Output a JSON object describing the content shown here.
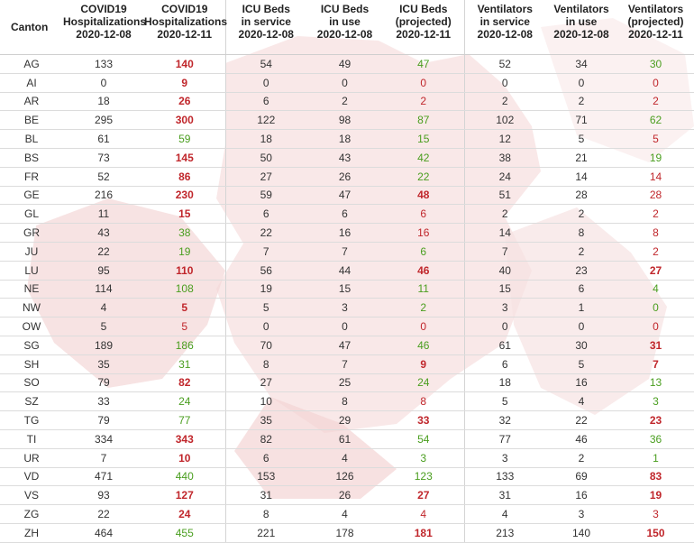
{
  "colors": {
    "increase": "#c0262b",
    "decrease": "#4a9e1f",
    "neutral": "#333333"
  },
  "headers": [
    [
      "Canton"
    ],
    [
      "COVID19",
      "Hospitalizations",
      "2020-12-08"
    ],
    [
      "COVID19",
      "Hospitalizations",
      "2020-12-11"
    ],
    [
      "ICU Beds",
      "in service",
      "2020-12-08"
    ],
    [
      "ICU Beds",
      "in use",
      "2020-12-08"
    ],
    [
      "ICU Beds",
      "(projected)",
      "2020-12-11"
    ],
    [
      "Ventilators",
      "in service",
      "2020-12-08"
    ],
    [
      "Ventilators",
      "in use",
      "2020-12-08"
    ],
    [
      "Ventilators",
      "(projected)",
      "2020-12-11"
    ]
  ],
  "rows": [
    {
      "canton": "AG",
      "hosp_0812": "133",
      "hosp_1211": {
        "value": "140",
        "trend": "red"
      },
      "icu_service": "54",
      "icu_use": "49",
      "icu_proj": {
        "value": "47",
        "trend": "green"
      },
      "vent_service": "52",
      "vent_use": "34",
      "vent_proj": {
        "value": "30",
        "trend": "green"
      }
    },
    {
      "canton": "AI",
      "hosp_0812": "0",
      "hosp_1211": {
        "value": "9",
        "trend": "red"
      },
      "icu_service": "0",
      "icu_use": "0",
      "icu_proj": {
        "value": "0",
        "trend": "red-light"
      },
      "vent_service": "0",
      "vent_use": "0",
      "vent_proj": {
        "value": "0",
        "trend": "red-light"
      }
    },
    {
      "canton": "AR",
      "hosp_0812": "18",
      "hosp_1211": {
        "value": "26",
        "trend": "red"
      },
      "icu_service": "6",
      "icu_use": "2",
      "icu_proj": {
        "value": "2",
        "trend": "red-light"
      },
      "vent_service": "2",
      "vent_use": "2",
      "vent_proj": {
        "value": "2",
        "trend": "red-light"
      }
    },
    {
      "canton": "BE",
      "hosp_0812": "295",
      "hosp_1211": {
        "value": "300",
        "trend": "red"
      },
      "icu_service": "122",
      "icu_use": "98",
      "icu_proj": {
        "value": "87",
        "trend": "green"
      },
      "vent_service": "102",
      "vent_use": "71",
      "vent_proj": {
        "value": "62",
        "trend": "green"
      }
    },
    {
      "canton": "BL",
      "hosp_0812": "61",
      "hosp_1211": {
        "value": "59",
        "trend": "green"
      },
      "icu_service": "18",
      "icu_use": "18",
      "icu_proj": {
        "value": "15",
        "trend": "green"
      },
      "vent_service": "12",
      "vent_use": "5",
      "vent_proj": {
        "value": "5",
        "trend": "red-light"
      }
    },
    {
      "canton": "BS",
      "hosp_0812": "73",
      "hosp_1211": {
        "value": "145",
        "trend": "red"
      },
      "icu_service": "50",
      "icu_use": "43",
      "icu_proj": {
        "value": "42",
        "trend": "green"
      },
      "vent_service": "38",
      "vent_use": "21",
      "vent_proj": {
        "value": "19",
        "trend": "green"
      }
    },
    {
      "canton": "FR",
      "hosp_0812": "52",
      "hosp_1211": {
        "value": "86",
        "trend": "red"
      },
      "icu_service": "27",
      "icu_use": "26",
      "icu_proj": {
        "value": "22",
        "trend": "green"
      },
      "vent_service": "24",
      "vent_use": "14",
      "vent_proj": {
        "value": "14",
        "trend": "red-light"
      }
    },
    {
      "canton": "GE",
      "hosp_0812": "216",
      "hosp_1211": {
        "value": "230",
        "trend": "red"
      },
      "icu_service": "59",
      "icu_use": "47",
      "icu_proj": {
        "value": "48",
        "trend": "red"
      },
      "vent_service": "51",
      "vent_use": "28",
      "vent_proj": {
        "value": "28",
        "trend": "red-light"
      }
    },
    {
      "canton": "GL",
      "hosp_0812": "11",
      "hosp_1211": {
        "value": "15",
        "trend": "red"
      },
      "icu_service": "6",
      "icu_use": "6",
      "icu_proj": {
        "value": "6",
        "trend": "red-light"
      },
      "vent_service": "2",
      "vent_use": "2",
      "vent_proj": {
        "value": "2",
        "trend": "red-light"
      }
    },
    {
      "canton": "GR",
      "hosp_0812": "43",
      "hosp_1211": {
        "value": "38",
        "trend": "green"
      },
      "icu_service": "22",
      "icu_use": "16",
      "icu_proj": {
        "value": "16",
        "trend": "red-light"
      },
      "vent_service": "14",
      "vent_use": "8",
      "vent_proj": {
        "value": "8",
        "trend": "red-light"
      }
    },
    {
      "canton": "JU",
      "hosp_0812": "22",
      "hosp_1211": {
        "value": "19",
        "trend": "green"
      },
      "icu_service": "7",
      "icu_use": "7",
      "icu_proj": {
        "value": "6",
        "trend": "green"
      },
      "vent_service": "7",
      "vent_use": "2",
      "vent_proj": {
        "value": "2",
        "trend": "red-light"
      }
    },
    {
      "canton": "LU",
      "hosp_0812": "95",
      "hosp_1211": {
        "value": "110",
        "trend": "red"
      },
      "icu_service": "56",
      "icu_use": "44",
      "icu_proj": {
        "value": "46",
        "trend": "red"
      },
      "vent_service": "40",
      "vent_use": "23",
      "vent_proj": {
        "value": "27",
        "trend": "red"
      }
    },
    {
      "canton": "NE",
      "hosp_0812": "114",
      "hosp_1211": {
        "value": "108",
        "trend": "green"
      },
      "icu_service": "19",
      "icu_use": "15",
      "icu_proj": {
        "value": "11",
        "trend": "green"
      },
      "vent_service": "15",
      "vent_use": "6",
      "vent_proj": {
        "value": "4",
        "trend": "green"
      }
    },
    {
      "canton": "NW",
      "hosp_0812": "4",
      "hosp_1211": {
        "value": "5",
        "trend": "red"
      },
      "icu_service": "5",
      "icu_use": "3",
      "icu_proj": {
        "value": "2",
        "trend": "green"
      },
      "vent_service": "3",
      "vent_use": "1",
      "vent_proj": {
        "value": "0",
        "trend": "green"
      }
    },
    {
      "canton": "OW",
      "hosp_0812": "5",
      "hosp_1211": {
        "value": "5",
        "trend": "red-light"
      },
      "icu_service": "0",
      "icu_use": "0",
      "icu_proj": {
        "value": "0",
        "trend": "red-light"
      },
      "vent_service": "0",
      "vent_use": "0",
      "vent_proj": {
        "value": "0",
        "trend": "red-light"
      }
    },
    {
      "canton": "SG",
      "hosp_0812": "189",
      "hosp_1211": {
        "value": "186",
        "trend": "green"
      },
      "icu_service": "70",
      "icu_use": "47",
      "icu_proj": {
        "value": "46",
        "trend": "green"
      },
      "vent_service": "61",
      "vent_use": "30",
      "vent_proj": {
        "value": "31",
        "trend": "red"
      }
    },
    {
      "canton": "SH",
      "hosp_0812": "35",
      "hosp_1211": {
        "value": "31",
        "trend": "green"
      },
      "icu_service": "8",
      "icu_use": "7",
      "icu_proj": {
        "value": "9",
        "trend": "red"
      },
      "vent_service": "6",
      "vent_use": "5",
      "vent_proj": {
        "value": "7",
        "trend": "red"
      }
    },
    {
      "canton": "SO",
      "hosp_0812": "79",
      "hosp_1211": {
        "value": "82",
        "trend": "red"
      },
      "icu_service": "27",
      "icu_use": "25",
      "icu_proj": {
        "value": "24",
        "trend": "green"
      },
      "vent_service": "18",
      "vent_use": "16",
      "vent_proj": {
        "value": "13",
        "trend": "green"
      }
    },
    {
      "canton": "SZ",
      "hosp_0812": "33",
      "hosp_1211": {
        "value": "24",
        "trend": "green"
      },
      "icu_service": "10",
      "icu_use": "8",
      "icu_proj": {
        "value": "8",
        "trend": "red-light"
      },
      "vent_service": "5",
      "vent_use": "4",
      "vent_proj": {
        "value": "3",
        "trend": "green"
      }
    },
    {
      "canton": "TG",
      "hosp_0812": "79",
      "hosp_1211": {
        "value": "77",
        "trend": "green"
      },
      "icu_service": "35",
      "icu_use": "29",
      "icu_proj": {
        "value": "33",
        "trend": "red"
      },
      "vent_service": "32",
      "vent_use": "22",
      "vent_proj": {
        "value": "23",
        "trend": "red"
      }
    },
    {
      "canton": "TI",
      "hosp_0812": "334",
      "hosp_1211": {
        "value": "343",
        "trend": "red"
      },
      "icu_service": "82",
      "icu_use": "61",
      "icu_proj": {
        "value": "54",
        "trend": "green"
      },
      "vent_service": "77",
      "vent_use": "46",
      "vent_proj": {
        "value": "36",
        "trend": "green"
      }
    },
    {
      "canton": "UR",
      "hosp_0812": "7",
      "hosp_1211": {
        "value": "10",
        "trend": "red"
      },
      "icu_service": "6",
      "icu_use": "4",
      "icu_proj": {
        "value": "3",
        "trend": "green"
      },
      "vent_service": "3",
      "vent_use": "2",
      "vent_proj": {
        "value": "1",
        "trend": "green"
      }
    },
    {
      "canton": "VD",
      "hosp_0812": "471",
      "hosp_1211": {
        "value": "440",
        "trend": "green"
      },
      "icu_service": "153",
      "icu_use": "126",
      "icu_proj": {
        "value": "123",
        "trend": "green"
      },
      "vent_service": "133",
      "vent_use": "69",
      "vent_proj": {
        "value": "83",
        "trend": "red"
      }
    },
    {
      "canton": "VS",
      "hosp_0812": "93",
      "hosp_1211": {
        "value": "127",
        "trend": "red"
      },
      "icu_service": "31",
      "icu_use": "26",
      "icu_proj": {
        "value": "27",
        "trend": "red"
      },
      "vent_service": "31",
      "vent_use": "16",
      "vent_proj": {
        "value": "19",
        "trend": "red"
      }
    },
    {
      "canton": "ZG",
      "hosp_0812": "22",
      "hosp_1211": {
        "value": "24",
        "trend": "red"
      },
      "icu_service": "8",
      "icu_use": "4",
      "icu_proj": {
        "value": "4",
        "trend": "red-light"
      },
      "vent_service": "4",
      "vent_use": "3",
      "vent_proj": {
        "value": "3",
        "trend": "red-light"
      }
    },
    {
      "canton": "ZH",
      "hosp_0812": "464",
      "hosp_1211": {
        "value": "455",
        "trend": "green"
      },
      "icu_service": "221",
      "icu_use": "178",
      "icu_proj": {
        "value": "181",
        "trend": "red"
      },
      "vent_service": "213",
      "vent_use": "140",
      "vent_proj": {
        "value": "150",
        "trend": "red"
      }
    }
  ]
}
